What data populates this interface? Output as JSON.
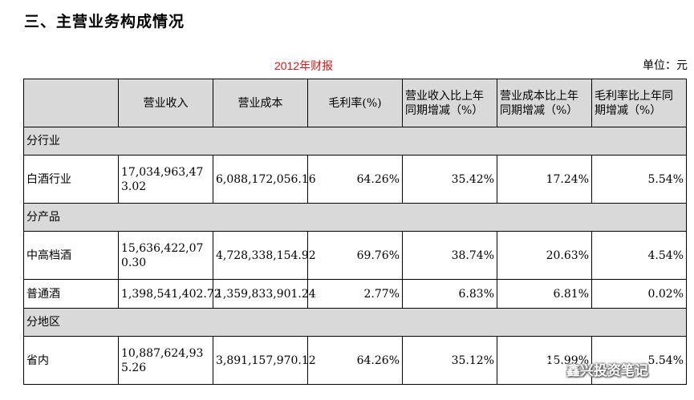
{
  "section_title": "三、主营业务构成情况",
  "report_title": "2012年财报",
  "unit": "单位：元",
  "headers": {
    "col0": "",
    "col1": "营业收入",
    "col2": "营业成本",
    "col3": "毛利率(%)",
    "col4": "营业收入比上年同期增减（%）",
    "col5": "营业成本比上年同期增减（%）",
    "col6": "毛利率比上年同期增减（%）"
  },
  "groups": {
    "industry": {
      "label": "分行业",
      "rows": [
        {
          "name": "白酒行业",
          "revenue": "17,034,963,473.02",
          "cost": "6,088,172,056.16",
          "margin": "64.26%",
          "rev_change": "35.42%",
          "cost_change": "17.24%",
          "margin_change": "5.54%"
        }
      ]
    },
    "product": {
      "label": "分产品",
      "rows": [
        {
          "name": "中高档酒",
          "revenue": "15,636,422,070.30",
          "cost": "4,728,338,154.92",
          "margin": "69.76%",
          "rev_change": "38.74%",
          "cost_change": "20.63%",
          "margin_change": "4.54%"
        },
        {
          "name": "普通酒",
          "revenue": "1,398,541,402.72",
          "cost": "1,359,833,901.24",
          "margin": "2.77%",
          "rev_change": "6.83%",
          "cost_change": "6.81%",
          "margin_change": "0.02%"
        }
      ]
    },
    "region": {
      "label": "分地区",
      "rows": [
        {
          "name": "省内",
          "revenue": "10,887,624,935.26",
          "cost": "3,891,157,970.12",
          "margin": "64.26%",
          "rev_change": "35.12%",
          "cost_change": "15.99%",
          "margin_change": "5.54%"
        }
      ]
    }
  },
  "watermark": {
    "text": "鑫兴投资笔记",
    "icon": "wechat-icon"
  }
}
